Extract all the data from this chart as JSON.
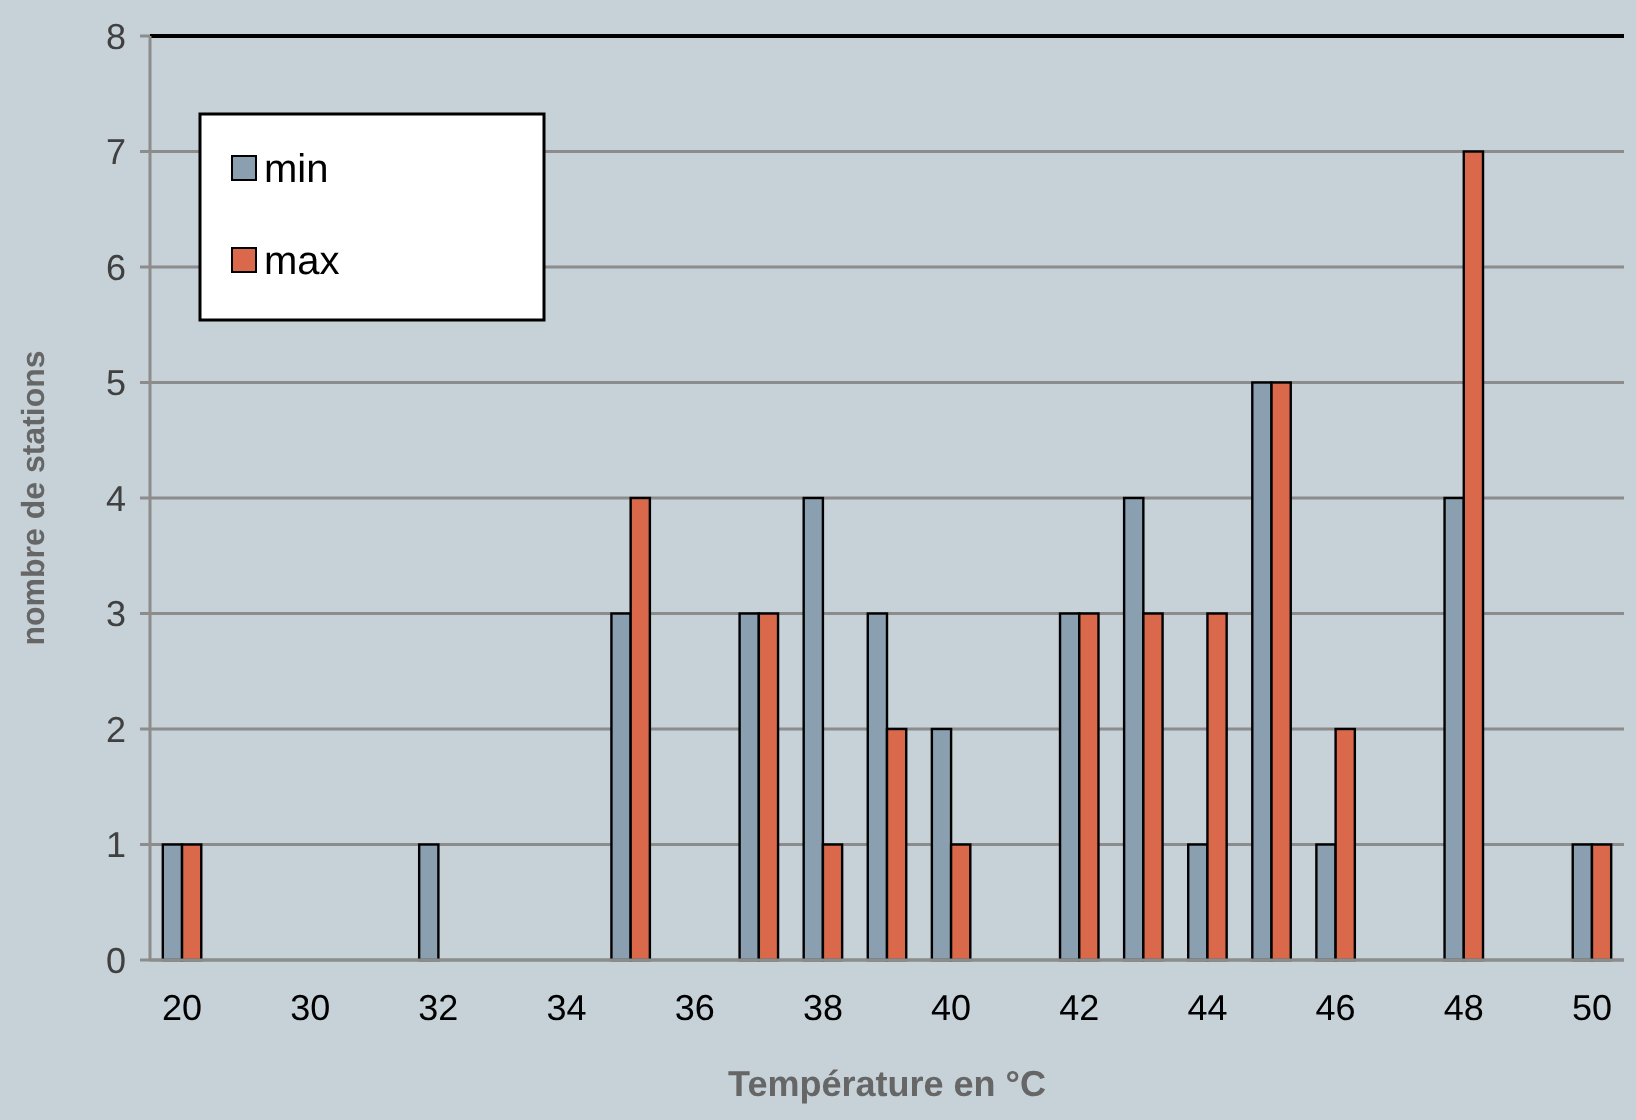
{
  "chart_data": {
    "type": "bar",
    "xlabel": "Température en °C",
    "ylabel": "nombre de stations",
    "categories": [
      "20",
      null,
      "30",
      null,
      "32",
      null,
      "34",
      null,
      "36",
      null,
      "38",
      null,
      "40",
      null,
      "42",
      null,
      "44",
      null,
      "46",
      null,
      "48",
      null,
      "50"
    ],
    "series": [
      {
        "name": "min",
        "color": "#8a9faf",
        "values": [
          1,
          0,
          0,
          0,
          1,
          0,
          0,
          3,
          0,
          3,
          4,
          3,
          2,
          0,
          3,
          4,
          1,
          5,
          1,
          0,
          4,
          0,
          1
        ]
      },
      {
        "name": "max",
        "color": "#d9694a",
        "values": [
          1,
          0,
          0,
          0,
          0,
          0,
          0,
          4,
          0,
          3,
          1,
          2,
          1,
          0,
          3,
          3,
          3,
          5,
          2,
          0,
          7,
          0,
          1
        ]
      }
    ],
    "ylim": [
      0,
      8
    ],
    "yticks": [
      0,
      1,
      2,
      3,
      4,
      5,
      6,
      7,
      8
    ],
    "grid": "y",
    "legend": "top left"
  }
}
